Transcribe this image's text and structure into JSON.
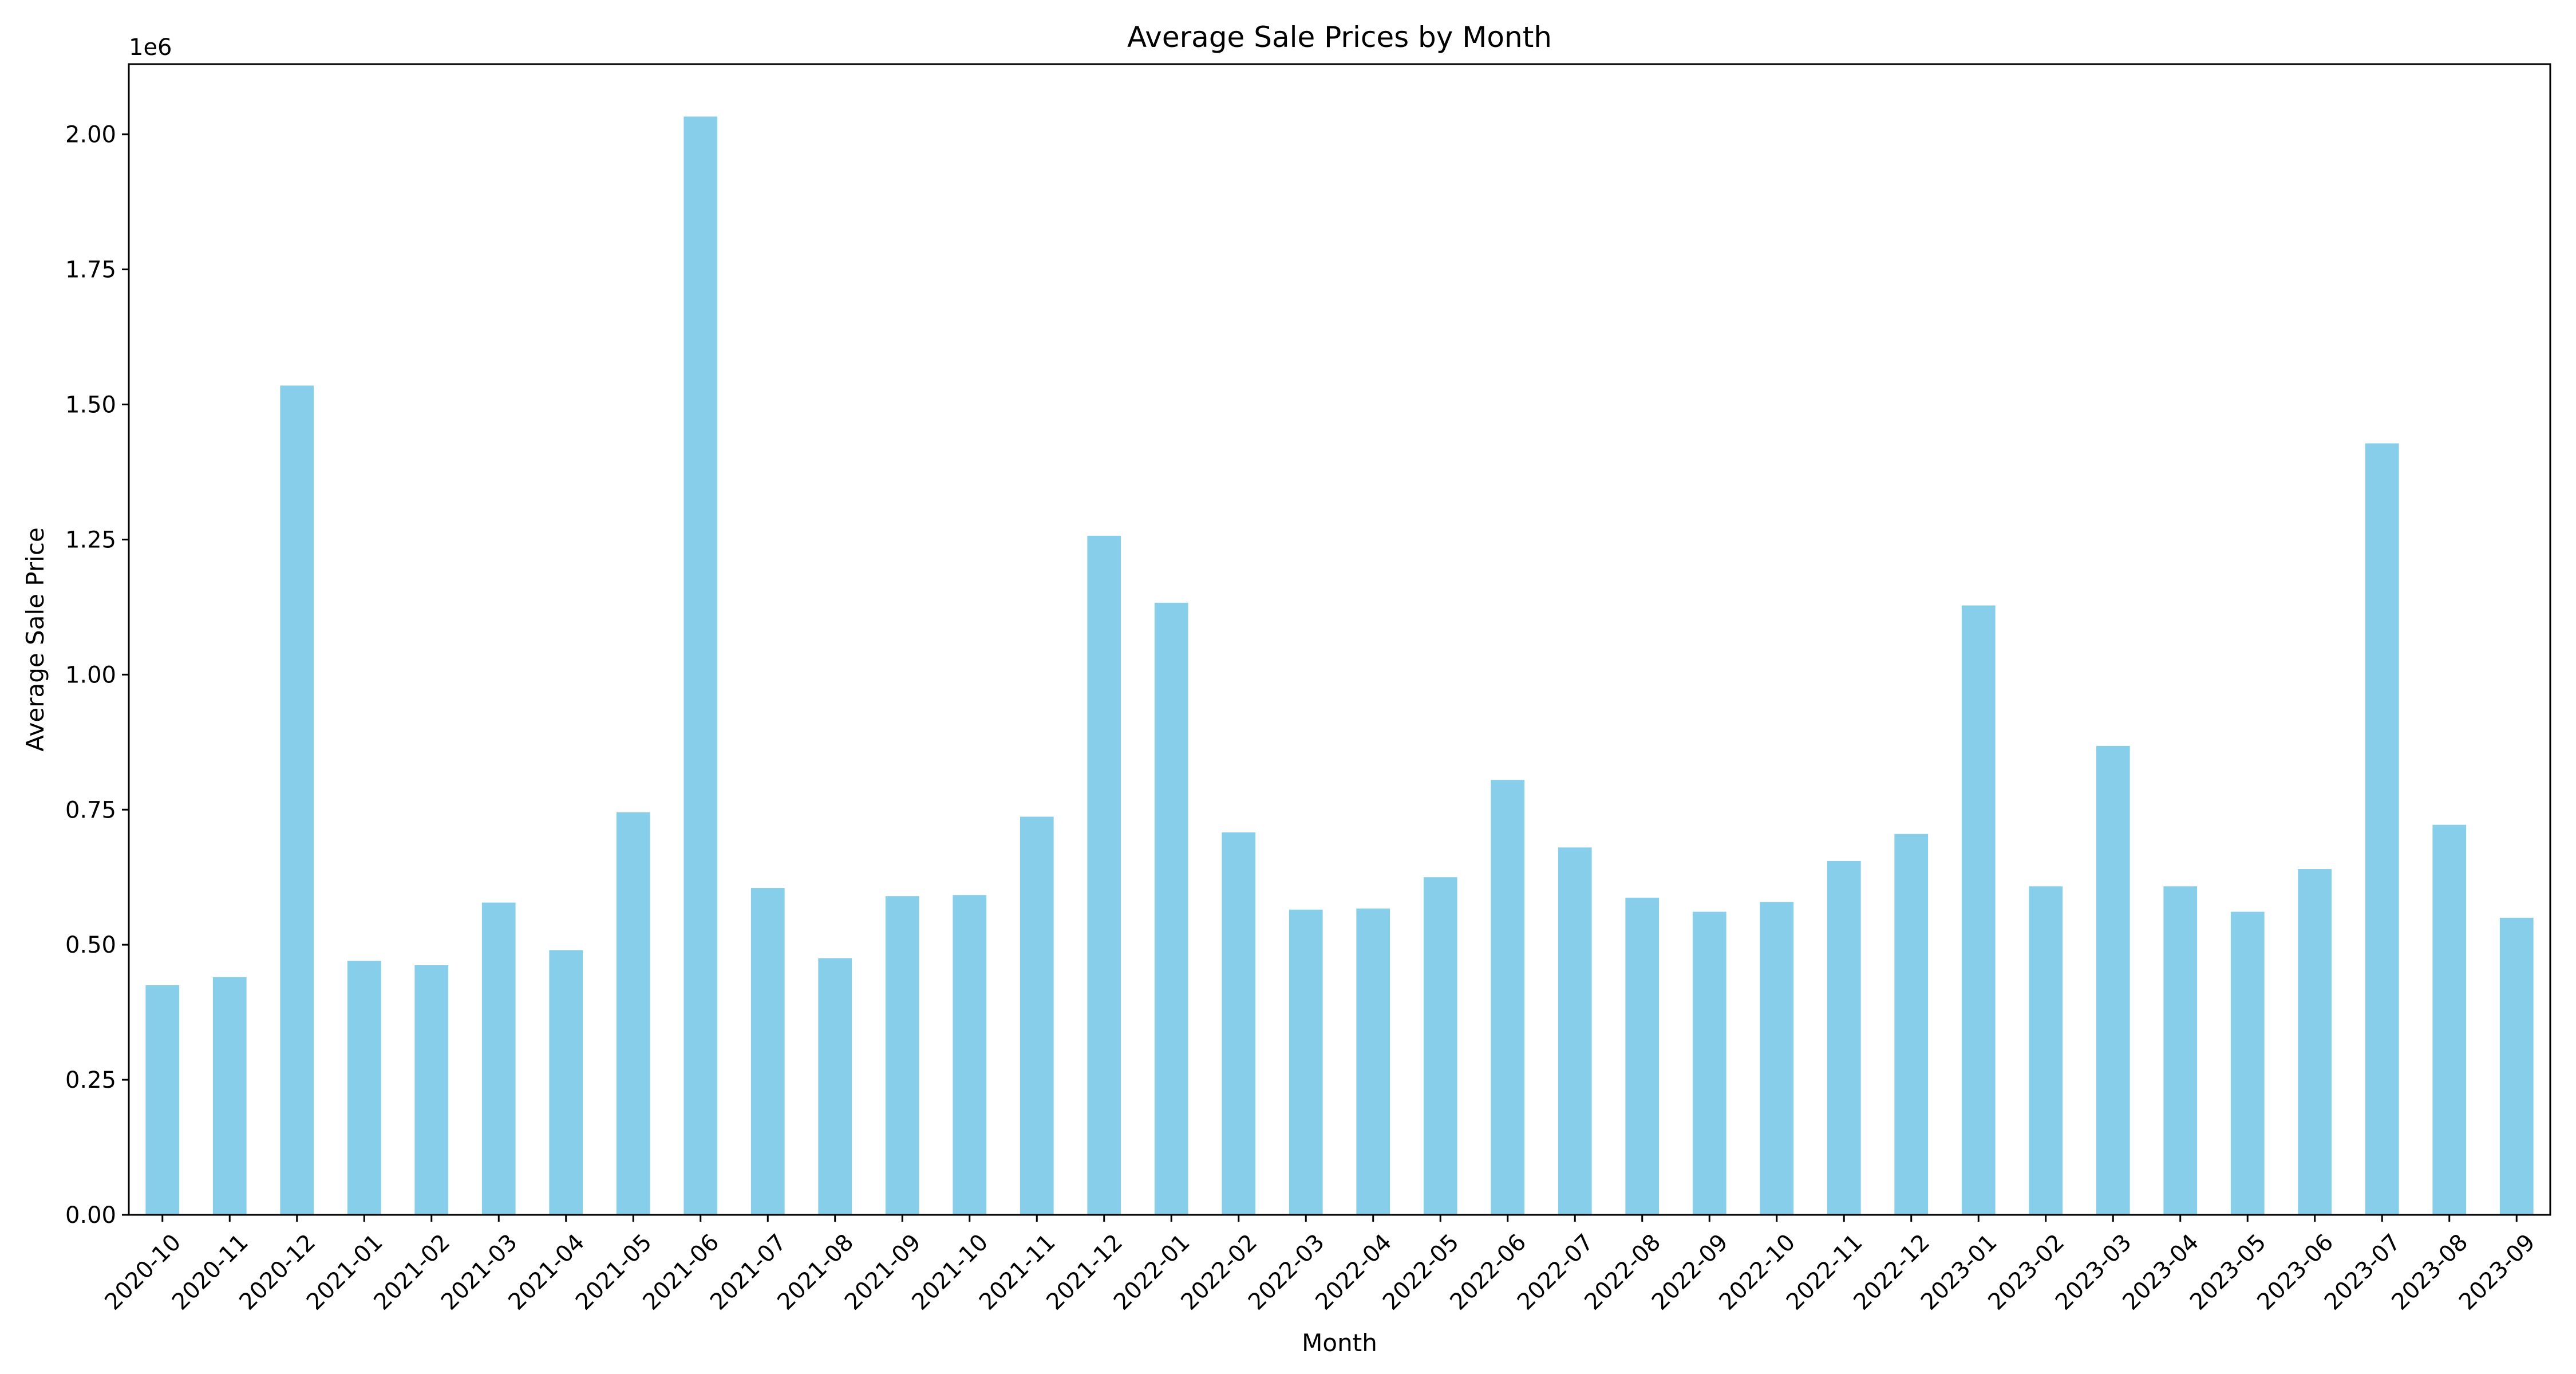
{
  "chart_data": {
    "type": "bar",
    "title": "Average Sale Prices by Month",
    "xlabel": "Month",
    "ylabel": "Average Sale Price",
    "offset_label": "1e6",
    "ylim": [
      0,
      2130000
    ],
    "yticks": [
      0,
      250000,
      500000,
      750000,
      1000000,
      1250000,
      1500000,
      1750000,
      2000000
    ],
    "ytick_labels": [
      "0.00",
      "0.25",
      "0.50",
      "0.75",
      "1.00",
      "1.25",
      "1.50",
      "1.75",
      "2.00"
    ],
    "grid": false,
    "legend": "none",
    "bar_color": "#87ceeb",
    "categories": [
      "2020-10",
      "2020-11",
      "2020-12",
      "2021-01",
      "2021-02",
      "2021-03",
      "2021-04",
      "2021-05",
      "2021-06",
      "2021-07",
      "2021-08",
      "2021-09",
      "2021-10",
      "2021-11",
      "2021-12",
      "2022-01",
      "2022-02",
      "2022-03",
      "2022-04",
      "2022-05",
      "2022-06",
      "2022-07",
      "2022-08",
      "2022-09",
      "2022-10",
      "2022-11",
      "2022-12",
      "2023-01",
      "2023-02",
      "2023-03",
      "2023-04",
      "2023-05",
      "2023-06",
      "2023-07",
      "2023-08",
      "2023-09"
    ],
    "values": [
      425000,
      440000,
      1535000,
      470000,
      462000,
      578000,
      490000,
      745000,
      2033000,
      605000,
      475000,
      590000,
      592000,
      737000,
      1257000,
      1133000,
      708000,
      565000,
      567000,
      625000,
      805000,
      680000,
      587000,
      561000,
      579000,
      655000,
      705000,
      1128000,
      608000,
      868000,
      608000,
      561000,
      640000,
      1428000,
      722000,
      550000
    ]
  }
}
